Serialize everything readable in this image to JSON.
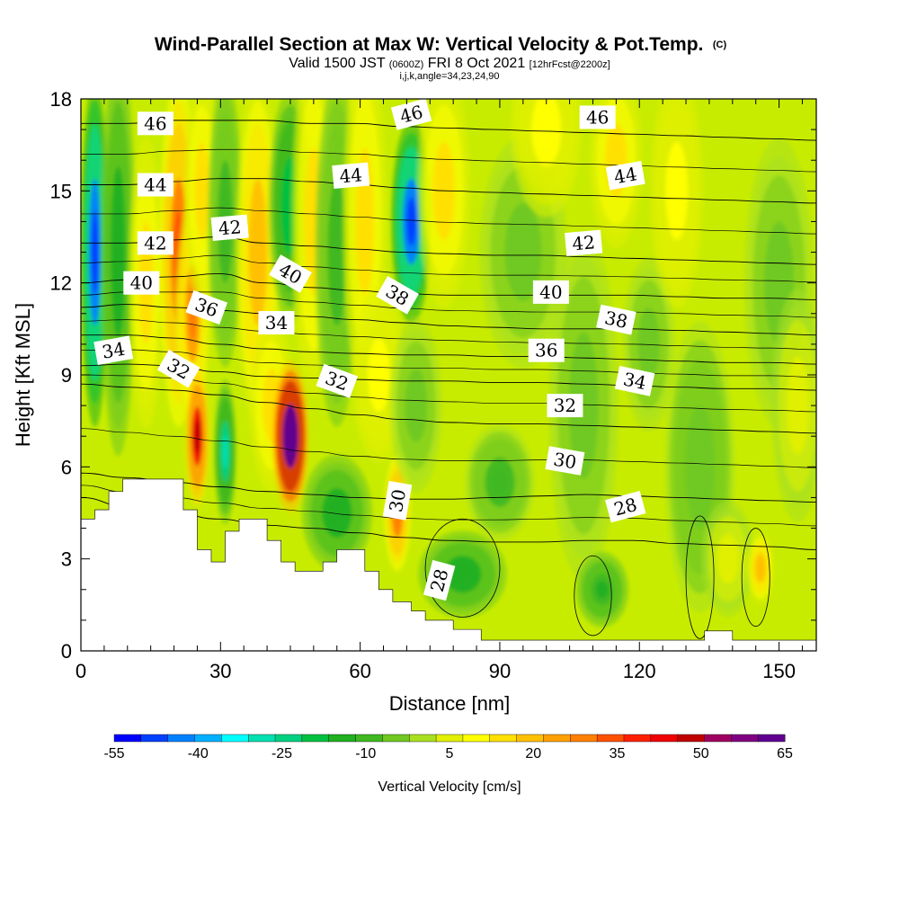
{
  "chart_data": {
    "type": "heatmap",
    "title": "Wind-Parallel Section at Max W: Vertical Velocity & Pot.Temp.",
    "title_mark": "(C)",
    "subtitle_parts": [
      "Valid 1500 JST ",
      "(0600Z)",
      " FRI 8 Oct 2021 ",
      "[12hrFcst@2200z]"
    ],
    "subtitle2": "i,j,k,angle=34,23,24,90",
    "xlabel": "Distance [nm]",
    "ylabel": "Height [Kft MSL]",
    "xlim": [
      0,
      158
    ],
    "ylim": [
      0,
      18
    ],
    "x_ticks": [
      0,
      30,
      60,
      90,
      120,
      150
    ],
    "y_ticks": [
      0,
      3,
      6,
      9,
      12,
      15,
      18
    ],
    "colorbar": {
      "label": "Vertical Velocity [cm/s]",
      "tick_labels": [
        "-55",
        "-40",
        "-25",
        "-10",
        "5",
        "20",
        "35",
        "50",
        "65"
      ],
      "levels": [
        -55,
        -50,
        -45,
        -40,
        -35,
        -30,
        -25,
        -20,
        -15,
        -10,
        -5,
        0,
        5,
        10,
        15,
        20,
        25,
        30,
        35,
        40,
        45,
        50,
        55,
        60,
        65
      ],
      "colors": [
        "#0000ff",
        "#0040ff",
        "#0080ff",
        "#00b0ff",
        "#00ffff",
        "#00e0b0",
        "#00d080",
        "#00c040",
        "#20b020",
        "#40b820",
        "#70c820",
        "#a8e020",
        "#e0f000",
        "#ffff00",
        "#ffe000",
        "#ffc000",
        "#ffa000",
        "#ff8000",
        "#ff5000",
        "#ff2000",
        "#f00000",
        "#c00000",
        "#a00060",
        "#800080",
        "#600090"
      ]
    },
    "vertical_velocity_features": [
      {
        "x": 3,
        "z": 13,
        "value": -45,
        "sx": 1.6,
        "sz": 6
      },
      {
        "x": 8,
        "z": 13,
        "value": -15,
        "sx": 2,
        "sz": 7
      },
      {
        "x": 14,
        "z": 12,
        "value": 15,
        "sx": 2,
        "sz": 5
      },
      {
        "x": 21,
        "z": 13,
        "value": 30,
        "sx": 2.2,
        "sz": 6
      },
      {
        "x": 24,
        "z": 11,
        "value": 25,
        "sx": 2,
        "sz": 4
      },
      {
        "x": 25,
        "z": 7,
        "value": 45,
        "sx": 1.4,
        "sz": 2.4
      },
      {
        "x": 26,
        "z": 15,
        "value": 15,
        "sx": 2,
        "sz": 4
      },
      {
        "x": 31,
        "z": 6.5,
        "value": -25,
        "sx": 1.3,
        "sz": 2.5
      },
      {
        "x": 31,
        "z": 14,
        "value": -10,
        "sx": 2,
        "sz": 5
      },
      {
        "x": 38,
        "z": 13,
        "value": 20,
        "sx": 2.5,
        "sz": 6
      },
      {
        "x": 41,
        "z": 8,
        "value": 15,
        "sx": 2.5,
        "sz": 3
      },
      {
        "x": 45,
        "z": 7,
        "value": 70,
        "sx": 2.1,
        "sz": 2.6
      },
      {
        "x": 45,
        "z": 14.5,
        "value": -20,
        "sx": 2.5,
        "sz": 4
      },
      {
        "x": 50,
        "z": 14,
        "value": 15,
        "sx": 2.5,
        "sz": 6
      },
      {
        "x": 55,
        "z": 4.5,
        "value": -15,
        "sx": 4,
        "sz": 2
      },
      {
        "x": 55,
        "z": 13,
        "value": -10,
        "sx": 2.5,
        "sz": 6
      },
      {
        "x": 61,
        "z": 14,
        "value": 15,
        "sx": 2.5,
        "sz": 6
      },
      {
        "x": 64,
        "z": 9,
        "value": 10,
        "sx": 3,
        "sz": 3
      },
      {
        "x": 68,
        "z": 4.5,
        "value": 28,
        "sx": 1.5,
        "sz": 2
      },
      {
        "x": 71,
        "z": 14,
        "value": -45,
        "sx": 2.3,
        "sz": 3.5
      },
      {
        "x": 72,
        "z": 8,
        "value": -5,
        "sx": 3,
        "sz": 3
      },
      {
        "x": 78,
        "z": 15,
        "value": 15,
        "sx": 3,
        "sz": 4
      },
      {
        "x": 82,
        "z": 2.5,
        "value": -15,
        "sx": 5,
        "sz": 1.5
      },
      {
        "x": 90,
        "z": 5.5,
        "value": -8,
        "sx": 4,
        "sz": 2
      },
      {
        "x": 95,
        "z": 13,
        "value": -5,
        "sx": 5,
        "sz": 4
      },
      {
        "x": 100,
        "z": 17,
        "value": 10,
        "sx": 4,
        "sz": 3
      },
      {
        "x": 108,
        "z": 8,
        "value": -5,
        "sx": 4,
        "sz": 6
      },
      {
        "x": 112,
        "z": 2,
        "value": -12,
        "sx": 3,
        "sz": 1.3
      },
      {
        "x": 115,
        "z": 16,
        "value": 15,
        "sx": 3,
        "sz": 3
      },
      {
        "x": 122,
        "z": 10,
        "value": -5,
        "sx": 3,
        "sz": 3
      },
      {
        "x": 128,
        "z": 15,
        "value": 10,
        "sx": 3,
        "sz": 4
      },
      {
        "x": 133,
        "z": 6,
        "value": -6,
        "sx": 4,
        "sz": 5
      },
      {
        "x": 139,
        "z": 3,
        "value": 5,
        "sx": 3,
        "sz": 2
      },
      {
        "x": 146,
        "z": 2.7,
        "value": 20,
        "sx": 1.5,
        "sz": 1.2
      },
      {
        "x": 150,
        "z": 12,
        "value": -5,
        "sx": 4,
        "sz": 5
      },
      {
        "x": 154,
        "z": 8,
        "value": 5,
        "sx": 3,
        "sz": 4
      }
    ],
    "terrain_top_kft": [
      [
        0,
        4.3
      ],
      [
        3,
        4.3
      ],
      [
        3,
        4.6
      ],
      [
        6,
        4.6
      ],
      [
        6,
        5.2
      ],
      [
        9,
        5.2
      ],
      [
        9,
        5.6
      ],
      [
        22,
        5.6
      ],
      [
        22,
        4.6
      ],
      [
        25,
        4.6
      ],
      [
        25,
        3.3
      ],
      [
        28,
        3.3
      ],
      [
        28,
        2.9
      ],
      [
        31,
        2.9
      ],
      [
        31,
        3.9
      ],
      [
        34,
        3.9
      ],
      [
        34,
        4.3
      ],
      [
        40,
        4.3
      ],
      [
        40,
        3.6
      ],
      [
        43,
        3.6
      ],
      [
        43,
        2.9
      ],
      [
        46,
        2.9
      ],
      [
        46,
        2.6
      ],
      [
        52,
        2.6
      ],
      [
        52,
        2.9
      ],
      [
        55,
        2.9
      ],
      [
        55,
        3.3
      ],
      [
        61,
        3.3
      ],
      [
        61,
        2.6
      ],
      [
        64,
        2.6
      ],
      [
        64,
        2.0
      ],
      [
        67,
        2.0
      ],
      [
        67,
        1.6
      ],
      [
        71,
        1.6
      ],
      [
        71,
        1.3
      ],
      [
        74,
        1.3
      ],
      [
        74,
        1.0
      ],
      [
        80,
        1.0
      ],
      [
        80,
        0.7
      ],
      [
        86,
        0.7
      ],
      [
        86,
        0.35
      ],
      [
        134,
        0.35
      ],
      [
        134,
        0.65
      ],
      [
        140,
        0.65
      ],
      [
        140,
        0.35
      ],
      [
        158,
        0.35
      ]
    ],
    "potential_temperature_contours": [
      {
        "level": 28,
        "z": [
          5.0,
          4.7,
          4.5,
          4.3,
          4.1,
          4.0,
          3.85,
          3.7,
          3.6,
          3.55,
          3.55,
          3.6,
          3.6,
          3.5,
          3.45,
          3.4,
          3.3
        ],
        "label": "28",
        "label_x": 116,
        "label_angle": -15
      },
      {
        "level": 30,
        "z": [
          5.8,
          5.65,
          5.5,
          5.35,
          5.2,
          5.1,
          5.0,
          4.95,
          4.95,
          5.0,
          5.05,
          5.1,
          5.05,
          5.0,
          4.95,
          4.9,
          4.85
        ],
        "label": "30",
        "label_x": 104,
        "label_angle": 8
      },
      {
        "level": 32,
        "z": [
          8.7,
          8.6,
          8.5,
          8.35,
          8.1,
          7.9,
          7.7,
          7.55,
          7.45,
          7.4,
          7.4,
          7.35,
          7.3,
          7.25,
          7.2,
          7.15,
          7.1
        ],
        "label": "32",
        "label_x": 104,
        "label_angle": 0
      },
      {
        "level": 34,
        "z": [
          9.3,
          9.35,
          9.3,
          9.1,
          8.95,
          8.9,
          8.85,
          8.8,
          8.8,
          8.75,
          8.75,
          8.7,
          8.65,
          8.6,
          8.55,
          8.55,
          8.5
        ],
        "label": "34",
        "label_x": 118,
        "label_angle": 10
      },
      {
        "level": 36,
        "z": [
          10.3,
          10.3,
          10.2,
          10.0,
          9.85,
          9.75,
          9.7,
          9.65,
          9.65,
          9.6,
          9.6,
          9.55,
          9.5,
          9.45,
          9.4,
          9.4,
          9.35
        ],
        "label": "36",
        "label_x": 100,
        "label_angle": 0
      },
      {
        "level": 38,
        "z": [
          11.2,
          11.3,
          11.2,
          11.1,
          11.0,
          10.9,
          10.8,
          10.7,
          10.6,
          10.55,
          10.5,
          10.5,
          10.5,
          10.45,
          10.4,
          10.35,
          10.3
        ],
        "label": "38",
        "label_x": 116,
        "label_angle": 12
      },
      {
        "level": 40,
        "z": [
          12.0,
          12.1,
          12.2,
          12.3,
          12.0,
          11.85,
          11.75,
          11.65,
          11.6,
          11.6,
          11.6,
          11.6,
          11.6,
          11.55,
          11.5,
          11.5,
          11.45
        ],
        "label": "40",
        "label_x": 101,
        "label_angle": 0
      },
      {
        "level": 42,
        "z": [
          13.3,
          13.3,
          13.4,
          13.5,
          13.3,
          13.2,
          13.1,
          13.0,
          12.95,
          12.9,
          12.9,
          12.85,
          12.8,
          12.75,
          12.7,
          12.65,
          12.6
        ],
        "label": "42",
        "label_x": 107,
        "label_angle": -5
      },
      {
        "level": 44,
        "z": [
          15.2,
          15.2,
          15.3,
          15.4,
          15.4,
          15.3,
          15.2,
          15.1,
          15.0,
          14.95,
          14.9,
          14.85,
          14.8,
          14.75,
          14.7,
          14.65,
          14.6
        ],
        "label": "44",
        "label_x": 116,
        "label_angle": -10
      },
      {
        "level": 46,
        "z": [
          17.2,
          17.2,
          17.3,
          17.3,
          17.3,
          17.2,
          17.2,
          17.1,
          17.05,
          17.0,
          16.95,
          16.9,
          16.85,
          16.8,
          16.75,
          16.7,
          16.65
        ],
        "label": "46",
        "label_x": 110,
        "label_angle": 0
      }
    ],
    "contour_labels": [
      {
        "text": "46",
        "x": 16,
        "z": 17.2,
        "angle": 0
      },
      {
        "text": "44",
        "x": 16,
        "z": 15.2,
        "angle": 0
      },
      {
        "text": "42",
        "x": 16,
        "z": 13.3,
        "angle": 0
      },
      {
        "text": "40",
        "x": 13,
        "z": 12.0,
        "angle": 0
      },
      {
        "text": "34",
        "x": 7,
        "z": 9.8,
        "angle": -10
      },
      {
        "text": "36",
        "x": 27,
        "z": 11.2,
        "angle": 20
      },
      {
        "text": "32",
        "x": 21,
        "z": 9.2,
        "angle": 30
      },
      {
        "text": "42",
        "x": 32,
        "z": 13.8,
        "angle": -5
      },
      {
        "text": "40",
        "x": 45,
        "z": 12.3,
        "angle": 30
      },
      {
        "text": "34",
        "x": 42,
        "z": 10.7,
        "angle": 0
      },
      {
        "text": "32",
        "x": 55,
        "z": 8.8,
        "angle": 20
      },
      {
        "text": "44",
        "x": 58,
        "z": 15.5,
        "angle": -5
      },
      {
        "text": "46",
        "x": 71,
        "z": 17.5,
        "angle": -15
      },
      {
        "text": "38",
        "x": 68,
        "z": 11.6,
        "angle": 30
      },
      {
        "text": "30",
        "x": 68,
        "z": 4.9,
        "angle": -80
      },
      {
        "text": "28",
        "x": 77,
        "z": 2.3,
        "angle": -75
      },
      {
        "text": "46",
        "x": 111,
        "z": 17.4,
        "angle": 0
      },
      {
        "text": "44",
        "x": 117,
        "z": 15.5,
        "angle": -10
      },
      {
        "text": "42",
        "x": 108,
        "z": 13.3,
        "angle": -5
      },
      {
        "text": "40",
        "x": 101,
        "z": 11.7,
        "angle": 0
      },
      {
        "text": "38",
        "x": 115,
        "z": 10.8,
        "angle": 12
      },
      {
        "text": "36",
        "x": 100,
        "z": 9.8,
        "angle": 0
      },
      {
        "text": "34",
        "x": 119,
        "z": 8.8,
        "angle": 12
      },
      {
        "text": "32",
        "x": 104,
        "z": 8.0,
        "angle": 0
      },
      {
        "text": "30",
        "x": 104,
        "z": 6.2,
        "angle": 10
      },
      {
        "text": "28",
        "x": 117,
        "z": 4.7,
        "angle": -15
      }
    ],
    "grid": false,
    "legend": "colorbar bottom"
  }
}
